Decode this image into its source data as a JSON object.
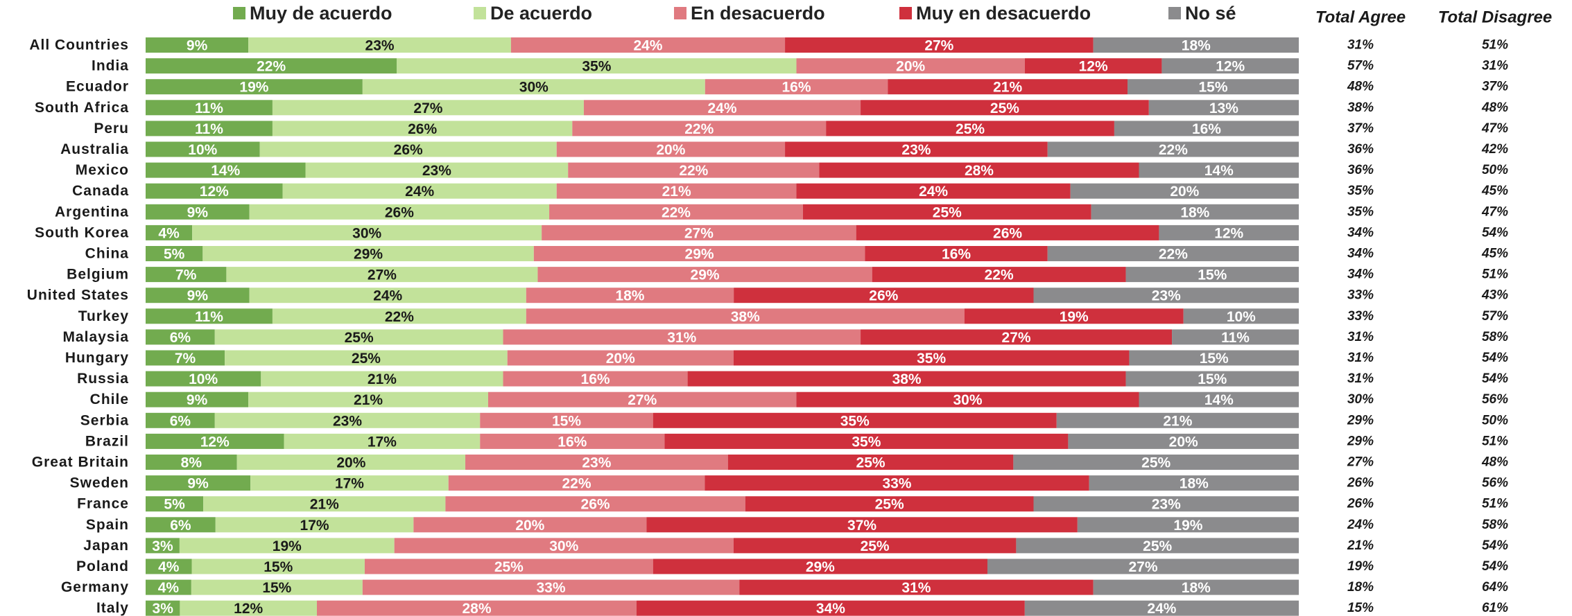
{
  "chart_data": {
    "type": "stacked_bar_horizontal",
    "categories": [
      "All Countries",
      "India",
      "Ecuador",
      "South Africa",
      "Peru",
      "Australia",
      "Mexico",
      "Canada",
      "Argentina",
      "South Korea",
      "China",
      "Belgium",
      "United States",
      "Turkey",
      "Malaysia",
      "Hungary",
      "Russia",
      "Chile",
      "Serbia",
      "Brazil",
      "Great Britain",
      "Sweden",
      "France",
      "Spain",
      "Japan",
      "Poland",
      "Germany",
      "Italy"
    ],
    "series": [
      {
        "name": "Muy de acuerdo",
        "color": "#72ab4f",
        "label_color": "#ffffff",
        "values": [
          9,
          22,
          19,
          11,
          11,
          10,
          14,
          12,
          9,
          4,
          5,
          7,
          9,
          11,
          6,
          7,
          10,
          9,
          6,
          12,
          8,
          9,
          5,
          6,
          3,
          4,
          4,
          3
        ],
        "value_labels": [
          "9%",
          "22%",
          "19%",
          "11%",
          "11%",
          "10%",
          "14%",
          "12%",
          "9%",
          "4%",
          "5%",
          "7%",
          "9%",
          "11%",
          "6%",
          "7%",
          "10%",
          "9%",
          "6%",
          "12%",
          "8%",
          "9%",
          "5%",
          "6%",
          "3%",
          "4%",
          "4%",
          "3%"
        ]
      },
      {
        "name": "De acuerdo",
        "color": "#c2e29a",
        "label_color": "#1a1a1a",
        "values": [
          23,
          35,
          30,
          27,
          26,
          26,
          23,
          24,
          26,
          30,
          29,
          27,
          24,
          22,
          25,
          25,
          21,
          21,
          23,
          17,
          20,
          17,
          21,
          17,
          19,
          15,
          15,
          12
        ],
        "value_labels": [
          "23%",
          "35%",
          "30%",
          "27%",
          "26%",
          "26%",
          "23%",
          "24%",
          "26%",
          "30%",
          "29%",
          "27%",
          "24%",
          "22%",
          "25%",
          "25%",
          "21%",
          "21%",
          "23%",
          "17%",
          "20%",
          "17%",
          "21%",
          "17%",
          "19%",
          "15%",
          "15%",
          "12%"
        ]
      },
      {
        "name": "En desacuerdo",
        "color": "#e07a80",
        "label_color": "#ffffff",
        "values": [
          24,
          20,
          16,
          24,
          22,
          20,
          22,
          21,
          22,
          27,
          29,
          29,
          18,
          38,
          31,
          20,
          16,
          27,
          15,
          16,
          23,
          22,
          26,
          20,
          30,
          25,
          33,
          28
        ],
        "value_labels": [
          "24%",
          "20%",
          "16%",
          "24%",
          "22%",
          "20%",
          "22%",
          "21%",
          "22%",
          "27%",
          "29%",
          "29%",
          "18%",
          "38%",
          "31%",
          "20%",
          "16%",
          "27%",
          "15%",
          "16%",
          "23%",
          "22%",
          "26%",
          "20%",
          "30%",
          "25%",
          "33%",
          "28%"
        ]
      },
      {
        "name": "Muy en desacuerdo",
        "color": "#cf303d",
        "label_color": "#ffffff",
        "values": [
          27,
          12,
          21,
          25,
          25,
          23,
          28,
          24,
          25,
          26,
          16,
          22,
          26,
          19,
          27,
          35,
          38,
          30,
          35,
          35,
          25,
          33,
          25,
          37,
          25,
          29,
          31,
          34
        ],
        "value_labels": [
          "27%",
          "12%",
          "21%",
          "25%",
          "25%",
          "23%",
          "28%",
          "24%",
          "25%",
          "26%",
          "16%",
          "22%",
          "26%",
          "19%",
          "27%",
          "35%",
          "38%",
          "30%",
          "35%",
          "35%",
          "25%",
          "33%",
          "25%",
          "37%",
          "25%",
          "29%",
          "31%",
          "34%"
        ]
      },
      {
        "name": "No sé",
        "color": "#8b8b8d",
        "label_color": "#ffffff",
        "values": [
          18,
          12,
          15,
          13,
          16,
          22,
          14,
          20,
          18,
          12,
          22,
          15,
          23,
          10,
          11,
          15,
          15,
          14,
          21,
          20,
          25,
          18,
          23,
          19,
          25,
          27,
          18,
          24
        ],
        "value_labels": [
          "18%",
          "12%",
          "15%",
          "13%",
          "16%",
          "22%",
          "14%",
          "20%",
          "18%",
          "12%",
          "22%",
          "15%",
          "23%",
          "10%",
          "11%",
          "15%",
          "15%",
          "14%",
          "21%",
          "20%",
          "25%",
          "18%",
          "23%",
          "19%",
          "25%",
          "27%",
          "18%",
          "24%"
        ]
      }
    ],
    "totals": [
      {
        "name": "Total Agree",
        "values": [
          31,
          57,
          48,
          38,
          37,
          36,
          36,
          35,
          35,
          34,
          34,
          34,
          33,
          33,
          31,
          31,
          31,
          30,
          29,
          29,
          27,
          26,
          26,
          24,
          21,
          19,
          18,
          15
        ],
        "value_labels": [
          "31%",
          "57%",
          "48%",
          "38%",
          "37%",
          "36%",
          "36%",
          "35%",
          "35%",
          "34%",
          "34%",
          "34%",
          "33%",
          "33%",
          "31%",
          "31%",
          "31%",
          "30%",
          "29%",
          "29%",
          "27%",
          "26%",
          "26%",
          "24%",
          "21%",
          "19%",
          "18%",
          "15%"
        ]
      },
      {
        "name": "Total Disagree",
        "values": [
          51,
          31,
          37,
          48,
          47,
          42,
          50,
          45,
          47,
          54,
          45,
          51,
          43,
          57,
          58,
          54,
          54,
          56,
          50,
          51,
          48,
          56,
          51,
          58,
          54,
          54,
          64,
          61
        ],
        "value_labels": [
          "51%",
          "31%",
          "37%",
          "48%",
          "47%",
          "42%",
          "50%",
          "45%",
          "47%",
          "54%",
          "45%",
          "51%",
          "43%",
          "57%",
          "58%",
          "54%",
          "54%",
          "56%",
          "50%",
          "51%",
          "48%",
          "56%",
          "51%",
          "58%",
          "54%",
          "54%",
          "64%",
          "61%"
        ]
      }
    ],
    "legend": "top"
  }
}
